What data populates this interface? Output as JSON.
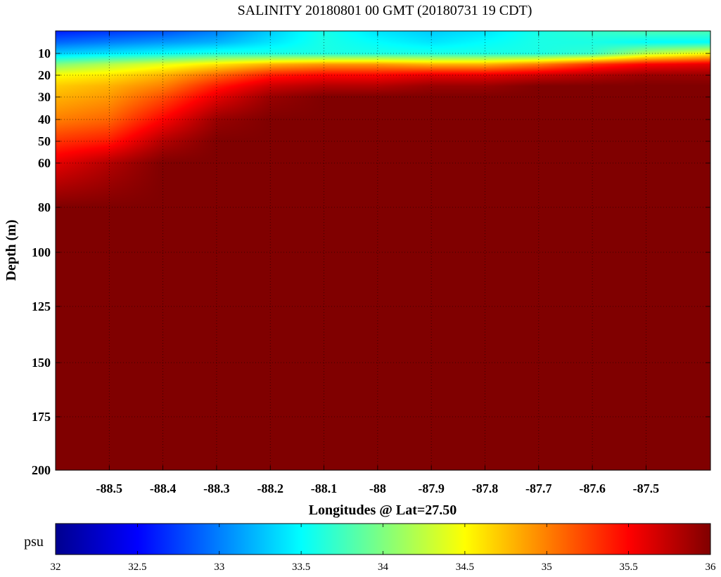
{
  "chart_data": {
    "type": "heatmap",
    "title": "SALINITY 20180801 00 GMT (20180731 19 CDT)",
    "xlabel": "Longitudes @ Lat=27.50",
    "ylabel": "Depth (m)",
    "xlim": [
      -88.6,
      -87.38
    ],
    "ylim": [
      0,
      200
    ],
    "y_axis_reversed": true,
    "y_scale": "nonlinear (stretched near surface)",
    "grid": true,
    "x_ticks": [
      -88.5,
      -88.4,
      -88.3,
      -88.2,
      -88.1,
      -88,
      -87.9,
      -87.8,
      -87.7,
      -87.6,
      -87.5
    ],
    "x_tick_labels": [
      "-88.5",
      "-88.4",
      "-88.3",
      "-88.2",
      "-88.1",
      "-88",
      "-87.9",
      "-87.8",
      "-87.7",
      "-87.6",
      "-87.5"
    ],
    "y_ticks": [
      10,
      20,
      30,
      40,
      50,
      60,
      80,
      100,
      125,
      150,
      175,
      200
    ],
    "y_tick_labels": [
      "10",
      "20",
      "30",
      "40",
      "50",
      "60",
      "80",
      "100",
      "125",
      "150",
      "175",
      "200"
    ],
    "colorbar": {
      "unit": "psu",
      "range": [
        32,
        36
      ],
      "ticks": [
        32,
        32.5,
        33,
        33.5,
        34,
        34.5,
        35,
        35.5,
        36
      ],
      "tick_labels": [
        "32",
        "32.5",
        "33",
        "33.5",
        "34",
        "34.5",
        "35",
        "35.5",
        "36"
      ],
      "colormap": "jet",
      "location": "bottom"
    },
    "field": {
      "x": [
        -88.6,
        -88.5,
        -88.4,
        -88.3,
        -88.2,
        -88.1,
        -88.0,
        -87.9,
        -87.8,
        -87.7,
        -87.6,
        -87.5,
        -87.38
      ],
      "depths": [
        0,
        5,
        10,
        15,
        20,
        25,
        30,
        40,
        50,
        60,
        80,
        200
      ],
      "values": [
        [
          32.6,
          32.7,
          32.8,
          33.0,
          33.3,
          33.6,
          33.4,
          33.3,
          33.4,
          33.6,
          33.7,
          33.8,
          33.8
        ],
        [
          32.9,
          33.0,
          33.1,
          33.2,
          33.4,
          33.6,
          33.5,
          33.4,
          33.5,
          33.6,
          33.6,
          33.5,
          33.5
        ],
        [
          33.3,
          33.4,
          33.5,
          33.6,
          33.6,
          33.6,
          33.6,
          33.6,
          33.6,
          33.6,
          33.7,
          34.2,
          34.5
        ],
        [
          34.0,
          34.2,
          34.4,
          34.6,
          34.8,
          34.9,
          34.9,
          34.8,
          34.8,
          35.0,
          35.3,
          35.5,
          35.6
        ],
        [
          34.5,
          34.6,
          34.8,
          35.1,
          35.4,
          35.5,
          35.5,
          35.6,
          35.6,
          35.7,
          35.8,
          35.9,
          35.9
        ],
        [
          34.7,
          34.8,
          35.0,
          35.4,
          35.7,
          35.8,
          35.8,
          35.9,
          35.9,
          36.0,
          36.0,
          36.0,
          36.0
        ],
        [
          34.8,
          34.9,
          35.2,
          35.6,
          35.9,
          36.0,
          36.0,
          36.0,
          36.0,
          36.0,
          36.0,
          36.0,
          36.0
        ],
        [
          35.0,
          35.1,
          35.5,
          35.9,
          36.0,
          36.0,
          36.0,
          36.0,
          36.0,
          36.0,
          36.0,
          36.0,
          36.0
        ],
        [
          35.3,
          35.4,
          35.8,
          36.0,
          36.0,
          36.0,
          36.0,
          36.0,
          36.0,
          36.0,
          36.0,
          36.0,
          36.0
        ],
        [
          35.6,
          35.8,
          36.0,
          36.0,
          36.0,
          36.0,
          36.0,
          36.0,
          36.0,
          36.0,
          36.0,
          36.0,
          36.0
        ],
        [
          36.0,
          36.0,
          36.0,
          36.0,
          36.0,
          36.0,
          36.0,
          36.0,
          36.0,
          36.0,
          36.0,
          36.0,
          36.0
        ],
        [
          36.0,
          36.0,
          36.0,
          36.0,
          36.0,
          36.0,
          36.0,
          36.0,
          36.0,
          36.0,
          36.0,
          36.0,
          36.0
        ]
      ]
    }
  }
}
